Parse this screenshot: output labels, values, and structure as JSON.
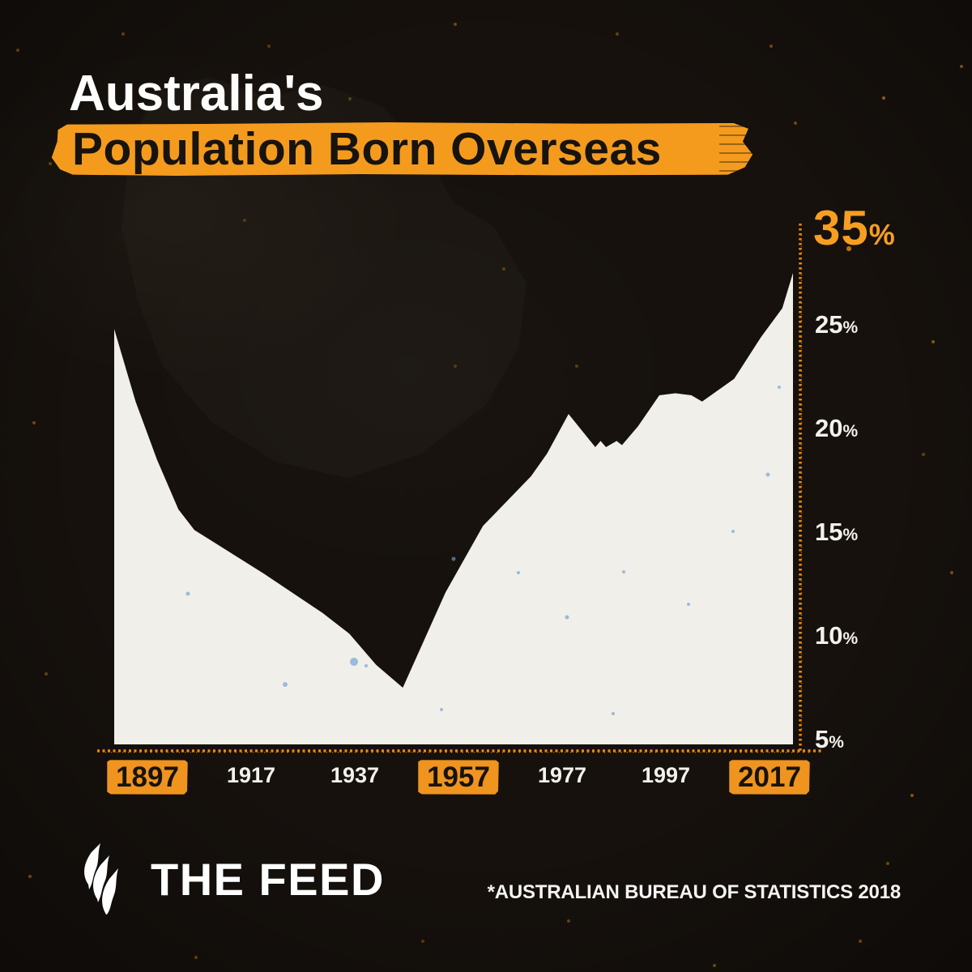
{
  "header": {
    "title_line1": "Australia's",
    "title_line2": "Population Born Overseas"
  },
  "y_axis": {
    "max": {
      "value": "35",
      "unit": "%"
    },
    "ticks": [
      {
        "value": "25",
        "unit": "%"
      },
      {
        "value": "20",
        "unit": "%"
      },
      {
        "value": "15",
        "unit": "%"
      },
      {
        "value": "10",
        "unit": "%"
      },
      {
        "value": "5",
        "unit": "%"
      }
    ]
  },
  "x_axis": {
    "ticks": [
      {
        "label": "1897",
        "highlighted": true
      },
      {
        "label": "1917",
        "highlighted": false
      },
      {
        "label": "1937",
        "highlighted": false
      },
      {
        "label": "1957",
        "highlighted": true
      },
      {
        "label": "1977",
        "highlighted": false
      },
      {
        "label": "1997",
        "highlighted": false
      },
      {
        "label": "2017",
        "highlighted": true
      }
    ]
  },
  "footer": {
    "brand": "THE FEED",
    "logo": "sbs-mercury-logo",
    "source": "*AUSTRALIAN BUREAU OF STATISTICS 2018"
  },
  "colors": {
    "background": "#16110d",
    "accent_orange": "#f49b1e",
    "axis_orange": "#e8890f",
    "chart_fill": "#f1efe9",
    "text_white": "#ffffff",
    "text_black": "#17130f"
  },
  "chart_data": {
    "type": "area",
    "title": "Australia's Population Born Overseas",
    "unit": "%",
    "x": [
      1891,
      1895,
      1899,
      1903,
      1906,
      1919,
      1930,
      1935,
      1940,
      1945,
      1953,
      1960,
      1969,
      1972,
      1976,
      1981,
      1982,
      1983,
      1985,
      1986,
      1989,
      1993,
      1996,
      1999,
      2001,
      2007,
      2012,
      2016,
      2018
    ],
    "values": [
      24.8,
      21.3,
      18.5,
      16.1,
      15.1,
      13.0,
      11.1,
      10.1,
      8.6,
      7.5,
      12.1,
      15.3,
      17.7,
      18.8,
      20.7,
      19.1,
      19.4,
      19.1,
      19.4,
      19.2,
      20.1,
      21.6,
      21.7,
      21.6,
      21.3,
      22.4,
      24.4,
      25.8,
      27.5
    ],
    "x_tick_labels": [
      "1897",
      "1917",
      "1937",
      "1957",
      "1977",
      "1997",
      "2017"
    ],
    "y_tick_labels": [
      "5%",
      "10%",
      "15%",
      "20%",
      "25%",
      "35%"
    ],
    "ylim": [
      4.5,
      35
    ],
    "xlabel": "",
    "ylabel": "",
    "grid": false,
    "legend": null
  }
}
